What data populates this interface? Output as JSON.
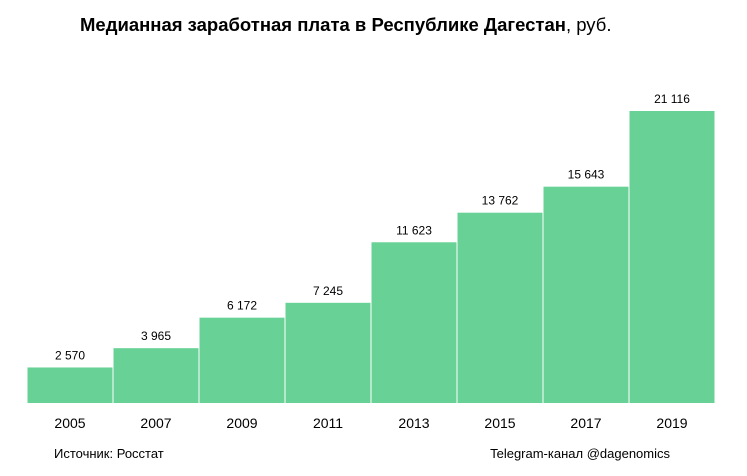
{
  "title": {
    "main": "Медианная заработная плата в Республике Дагестан",
    "unit": ", руб."
  },
  "footer": {
    "source": "Источник: Росстат",
    "channel": "Telegram-канал @dagenomics"
  },
  "colors": {
    "bar": "#68d296"
  },
  "chart_data": {
    "type": "bar",
    "title": "Медианная заработная плата в Республике Дагестан, руб.",
    "xlabel": "",
    "ylabel": "",
    "categories": [
      "2005",
      "2007",
      "2009",
      "2011",
      "2013",
      "2015",
      "2017",
      "2019"
    ],
    "values": [
      2570,
      3965,
      6172,
      7245,
      11623,
      13762,
      15643,
      21116
    ],
    "value_labels": [
      "2 570",
      "3 965",
      "6 172",
      "7 245",
      "11 623",
      "13 762",
      "15 643",
      "21 116"
    ],
    "ylim": [
      0,
      22000
    ],
    "grid": false,
    "legend": "none"
  }
}
